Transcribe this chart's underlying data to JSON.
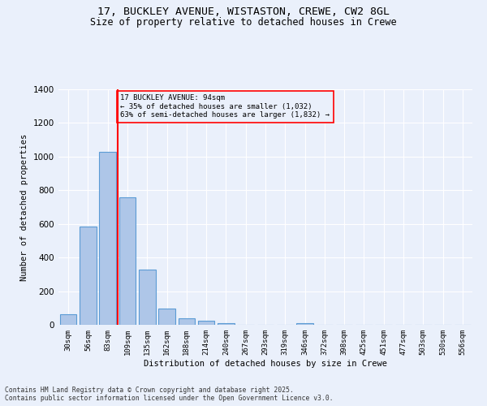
{
  "title_line1": "17, BUCKLEY AVENUE, WISTASTON, CREWE, CW2 8GL",
  "title_line2": "Size of property relative to detached houses in Crewe",
  "xlabel": "Distribution of detached houses by size in Crewe",
  "ylabel": "Number of detached properties",
  "categories": [
    "30sqm",
    "56sqm",
    "83sqm",
    "109sqm",
    "135sqm",
    "162sqm",
    "188sqm",
    "214sqm",
    "240sqm",
    "267sqm",
    "293sqm",
    "319sqm",
    "346sqm",
    "372sqm",
    "398sqm",
    "425sqm",
    "451sqm",
    "477sqm",
    "503sqm",
    "530sqm",
    "556sqm"
  ],
  "values": [
    65,
    585,
    1030,
    760,
    330,
    95,
    38,
    22,
    12,
    0,
    0,
    0,
    12,
    0,
    0,
    0,
    0,
    0,
    0,
    0,
    0
  ],
  "bar_color": "#aec6e8",
  "bar_edge_color": "#5b9bd5",
  "red_line_label": "17 BUCKLEY AVENUE: 94sqm",
  "annotation_line2": "← 35% of detached houses are smaller (1,032)",
  "annotation_line3": "63% of semi-detached houses are larger (1,832) →",
  "ylim": [
    0,
    1400
  ],
  "yticks": [
    0,
    200,
    400,
    600,
    800,
    1000,
    1200,
    1400
  ],
  "bg_color": "#eaf0fb",
  "grid_color": "#ffffff",
  "footer_line1": "Contains HM Land Registry data © Crown copyright and database right 2025.",
  "footer_line2": "Contains public sector information licensed under the Open Government Licence v3.0."
}
